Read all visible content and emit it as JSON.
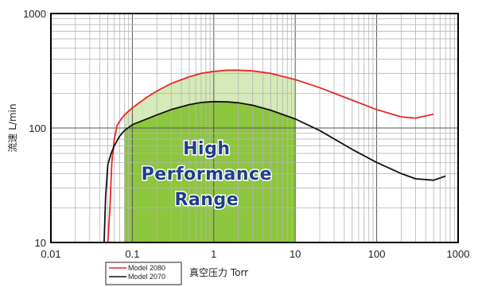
{
  "chart_data": {
    "type": "line",
    "xscale": "log",
    "yscale": "log",
    "xlim": [
      0.01,
      1000
    ],
    "ylim": [
      10,
      1000
    ],
    "xticks": [
      "0.01",
      "0.1",
      "1",
      "10",
      "100",
      "1000"
    ],
    "yticks": [
      "10",
      "100",
      "1000"
    ],
    "xlabel": "真空压力 Torr",
    "ylabel": "流速 L/min",
    "grid": true,
    "legend_position": "bottom-left, below plot",
    "highlight": {
      "label_lines": [
        "High",
        "Performance",
        "Range"
      ],
      "x_range": [
        0.08,
        10
      ],
      "color": "#8dc63f"
    },
    "series": [
      {
        "name": "Model 2080",
        "color": "#e8262b",
        "x": [
          0.05,
          0.053,
          0.056,
          0.06,
          0.065,
          0.07,
          0.08,
          0.1,
          0.15,
          0.2,
          0.3,
          0.5,
          0.7,
          1,
          1.5,
          2,
          3,
          5,
          10,
          20,
          50,
          100,
          200,
          300,
          500
        ],
        "y": [
          10,
          20,
          50,
          80,
          105,
          115,
          130,
          150,
          185,
          210,
          245,
          280,
          300,
          312,
          320,
          320,
          315,
          300,
          265,
          225,
          175,
          145,
          125,
          122,
          132
        ]
      },
      {
        "name": "Model 2070",
        "color": "#111111",
        "x": [
          0.045,
          0.047,
          0.05,
          0.055,
          0.06,
          0.07,
          0.08,
          0.1,
          0.2,
          0.3,
          0.5,
          0.7,
          1,
          1.5,
          2,
          3,
          5,
          10,
          20,
          50,
          100,
          200,
          300,
          500,
          700
        ],
        "y": [
          10,
          25,
          48,
          60,
          70,
          85,
          95,
          107,
          130,
          145,
          160,
          167,
          170,
          169,
          166,
          158,
          143,
          120,
          95,
          65,
          50,
          40,
          36,
          35,
          38
        ]
      }
    ]
  }
}
